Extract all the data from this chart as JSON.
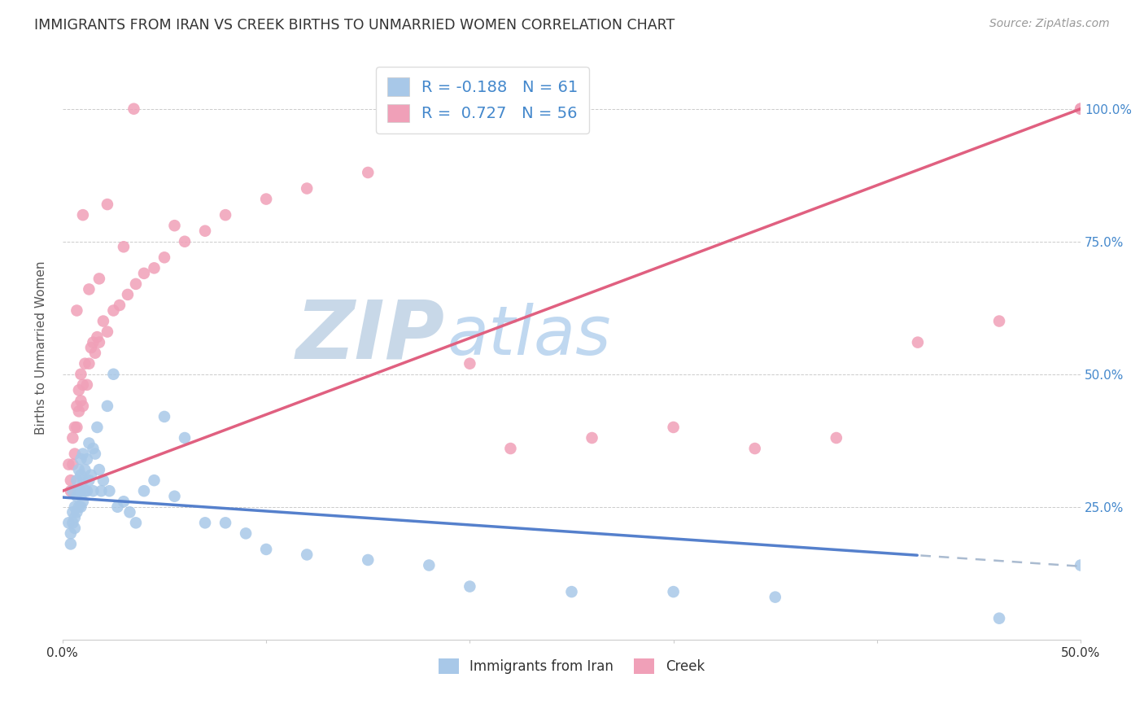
{
  "title": "IMMIGRANTS FROM IRAN VS CREEK BIRTHS TO UNMARRIED WOMEN CORRELATION CHART",
  "source": "Source: ZipAtlas.com",
  "ylabel": "Births to Unmarried Women",
  "x_tick_labels": [
    "0.0%",
    "",
    "",
    "",
    "",
    "50.0%"
  ],
  "x_tick_vals": [
    0.0,
    0.1,
    0.2,
    0.3,
    0.4,
    0.5
  ],
  "y_tick_labels": [
    "25.0%",
    "50.0%",
    "75.0%",
    "100.0%"
  ],
  "y_tick_vals": [
    0.25,
    0.5,
    0.75,
    1.0
  ],
  "xlim": [
    0.0,
    0.5
  ],
  "ylim": [
    0.0,
    1.1
  ],
  "legend_label1": "Immigrants from Iran",
  "legend_label2": "Creek",
  "R1": "-0.188",
  "N1": "61",
  "R2": "0.727",
  "N2": "56",
  "color_iran": "#a8c8e8",
  "color_creek": "#f0a0b8",
  "color_iran_line": "#5580cc",
  "color_creek_line": "#e06080",
  "color_iran_line_ext": "#aabbd0",
  "watermark_ZIP": "#c8d8e8",
  "watermark_atlas": "#c0d8f0",
  "iran_line_intercept": 0.268,
  "iran_line_slope": -0.26,
  "iran_line_solid_end": 0.42,
  "creek_line_intercept": 0.28,
  "creek_line_slope": 1.44,
  "iran_scatter_x": [
    0.003,
    0.004,
    0.004,
    0.005,
    0.005,
    0.005,
    0.006,
    0.006,
    0.006,
    0.007,
    0.007,
    0.007,
    0.008,
    0.008,
    0.008,
    0.009,
    0.009,
    0.009,
    0.009,
    0.01,
    0.01,
    0.01,
    0.011,
    0.011,
    0.012,
    0.012,
    0.013,
    0.013,
    0.014,
    0.015,
    0.015,
    0.016,
    0.017,
    0.018,
    0.019,
    0.02,
    0.022,
    0.023,
    0.025,
    0.027,
    0.03,
    0.033,
    0.036,
    0.04,
    0.045,
    0.05,
    0.055,
    0.06,
    0.07,
    0.08,
    0.09,
    0.1,
    0.12,
    0.15,
    0.18,
    0.2,
    0.25,
    0.3,
    0.35,
    0.46,
    0.5
  ],
  "iran_scatter_y": [
    0.22,
    0.2,
    0.18,
    0.28,
    0.24,
    0.22,
    0.25,
    0.23,
    0.21,
    0.3,
    0.27,
    0.24,
    0.32,
    0.28,
    0.25,
    0.34,
    0.31,
    0.28,
    0.25,
    0.35,
    0.3,
    0.26,
    0.32,
    0.28,
    0.34,
    0.28,
    0.37,
    0.3,
    0.31,
    0.36,
    0.28,
    0.35,
    0.4,
    0.32,
    0.28,
    0.3,
    0.44,
    0.28,
    0.5,
    0.25,
    0.26,
    0.24,
    0.22,
    0.28,
    0.3,
    0.42,
    0.27,
    0.38,
    0.22,
    0.22,
    0.2,
    0.17,
    0.16,
    0.15,
    0.14,
    0.1,
    0.09,
    0.09,
    0.08,
    0.04,
    0.14
  ],
  "creek_scatter_x": [
    0.003,
    0.004,
    0.004,
    0.005,
    0.005,
    0.006,
    0.006,
    0.007,
    0.007,
    0.008,
    0.008,
    0.009,
    0.009,
    0.01,
    0.01,
    0.011,
    0.012,
    0.013,
    0.014,
    0.015,
    0.016,
    0.017,
    0.018,
    0.02,
    0.022,
    0.025,
    0.028,
    0.032,
    0.036,
    0.04,
    0.045,
    0.05,
    0.06,
    0.07,
    0.08,
    0.1,
    0.12,
    0.15,
    0.2,
    0.22,
    0.26,
    0.3,
    0.34,
    0.38,
    0.42,
    0.46,
    0.5,
    0.5,
    0.007,
    0.013,
    0.018,
    0.03,
    0.055,
    0.01,
    0.022,
    0.035
  ],
  "creek_scatter_y": [
    0.33,
    0.3,
    0.28,
    0.38,
    0.33,
    0.4,
    0.35,
    0.44,
    0.4,
    0.47,
    0.43,
    0.5,
    0.45,
    0.48,
    0.44,
    0.52,
    0.48,
    0.52,
    0.55,
    0.56,
    0.54,
    0.57,
    0.56,
    0.6,
    0.58,
    0.62,
    0.63,
    0.65,
    0.67,
    0.69,
    0.7,
    0.72,
    0.75,
    0.77,
    0.8,
    0.83,
    0.85,
    0.88,
    0.52,
    0.36,
    0.38,
    0.4,
    0.36,
    0.38,
    0.56,
    0.6,
    1.0,
    1.0,
    0.62,
    0.66,
    0.68,
    0.74,
    0.78,
    0.8,
    0.82,
    1.0
  ]
}
